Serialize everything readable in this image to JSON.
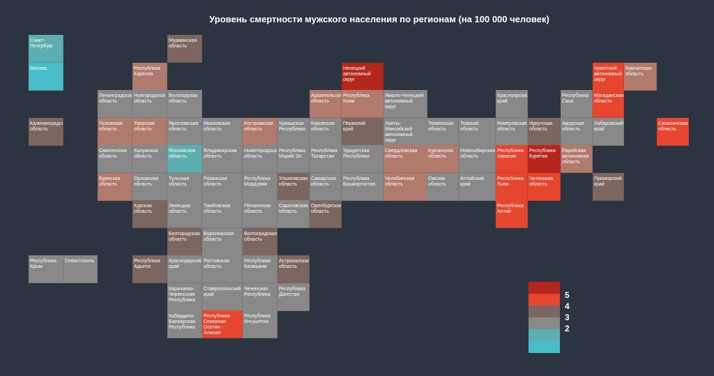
{
  "title": "Уровень смертности мужского населения по регионам (на 100 000 человек)",
  "palette": {
    "turquoise": "#47bdc7",
    "teal": "#5daeb0",
    "gray": "#888888",
    "brown": "#7d6560",
    "salmon": "#b07a6c",
    "orange": "#e6452e",
    "red": "#b5271d"
  },
  "regions": [
    {
      "name": "Санкт-Петербург",
      "col": 0,
      "row": 0,
      "color": "teal"
    },
    {
      "name": "Мурманская\nобласть",
      "col": 4,
      "row": 0,
      "color": "brown"
    },
    {
      "name": "Москва",
      "col": 0,
      "row": 1,
      "color": "turquoise"
    },
    {
      "name": "Республика\nКарелия",
      "col": 3,
      "row": 1,
      "color": "salmon"
    },
    {
      "name": "Ненецкий\nавтономный\nокруг",
      "col": 9,
      "row": 1,
      "color": "red"
    },
    {
      "name": "Чукотский\nавтономный\nокруг",
      "col": 16,
      "row": 1,
      "color": "orange"
    },
    {
      "name": "Камчатская\nобласть",
      "col": 17,
      "row": 1,
      "color": "salmon"
    },
    {
      "name": "Ленинградская\nобласть",
      "col": 2,
      "row": 2,
      "color": "gray"
    },
    {
      "name": "Новгородская\nобласть",
      "col": 3,
      "row": 2,
      "color": "gray"
    },
    {
      "name": "Вологодская\nобласть",
      "col": 4,
      "row": 2,
      "color": "gray"
    },
    {
      "name": "Архангельская\nобласть",
      "col": 8,
      "row": 2,
      "color": "salmon"
    },
    {
      "name": "Республика\nКоми",
      "col": 9,
      "row": 2,
      "color": "salmon"
    },
    {
      "name": "Ямало-Ненецкий\nавтономный округ",
      "col": 10,
      "row": 2,
      "color": "gray",
      "wide": true
    },
    {
      "name": "Красноярский\nкрай",
      "col": 13,
      "row": 2,
      "color": "gray"
    },
    {
      "name": "Республика\nСаха",
      "col": 15,
      "row": 2,
      "color": "gray"
    },
    {
      "name": "Магаданская\nобласть",
      "col": 16,
      "row": 2,
      "color": "orange"
    },
    {
      "name": "Калининградская\nобласть",
      "col": 0,
      "row": 3,
      "color": "brown"
    },
    {
      "name": "Псковская\nобласть",
      "col": 2,
      "row": 3,
      "color": "salmon"
    },
    {
      "name": "Тверская\nобласть",
      "col": 3,
      "row": 3,
      "color": "salmon"
    },
    {
      "name": "Ярославская\nобласть",
      "col": 4,
      "row": 3,
      "color": "gray"
    },
    {
      "name": "Ивановская\nобласть",
      "col": 5,
      "row": 3,
      "color": "gray"
    },
    {
      "name": "Костромская\nобласть",
      "col": 6,
      "row": 3,
      "color": "salmon"
    },
    {
      "name": "Чувашская\nРеспублика",
      "col": 7,
      "row": 3,
      "color": "gray"
    },
    {
      "name": "Кировская\nобласть",
      "col": 8,
      "row": 3,
      "color": "gray"
    },
    {
      "name": "Пермский\nкрай",
      "col": 9,
      "row": 3,
      "color": "brown"
    },
    {
      "name": "Ханты-Мансийский\nавтономный округ",
      "col": 10,
      "row": 3,
      "color": "gray",
      "wide": true
    },
    {
      "name": "Тюменская\nобласть",
      "col": 11,
      "row": 3,
      "color": "gray"
    },
    {
      "name": "Томская\nобласть",
      "col": 12,
      "row": 3,
      "color": "gray"
    },
    {
      "name": "Кемеровская\nобласть",
      "col": 13,
      "row": 3,
      "color": "gray"
    },
    {
      "name": "Иркутская\nобласть",
      "col": 14,
      "row": 3,
      "color": "brown"
    },
    {
      "name": "Амурская\nобласть",
      "col": 15,
      "row": 3,
      "color": "gray"
    },
    {
      "name": "Хабаровский\nкрай",
      "col": 16,
      "row": 3,
      "color": "gray"
    },
    {
      "name": "Сахалинская\nобласть",
      "col": 18,
      "row": 3,
      "color": "orange"
    },
    {
      "name": "Смоленская\nобласть",
      "col": 2,
      "row": 4,
      "color": "gray"
    },
    {
      "name": "Калужская\nобласть",
      "col": 3,
      "row": 4,
      "color": "gray"
    },
    {
      "name": "Московская\nобласть",
      "col": 4,
      "row": 4,
      "color": "teal"
    },
    {
      "name": "Владимирская\nобласть",
      "col": 5,
      "row": 4,
      "color": "gray"
    },
    {
      "name": "Нижегородская\nобласть",
      "col": 6,
      "row": 4,
      "color": "gray"
    },
    {
      "name": "Республика\nМарий Эл",
      "col": 7,
      "row": 4,
      "color": "gray"
    },
    {
      "name": "Республика\nТатарстан",
      "col": 8,
      "row": 4,
      "color": "gray"
    },
    {
      "name": "Удмуртская\nРеспублика",
      "col": 9,
      "row": 4,
      "color": "gray"
    },
    {
      "name": "Свердловская\nобласть",
      "col": 10,
      "row": 4,
      "color": "salmon",
      "wide": true
    },
    {
      "name": "Курганская\nобласть",
      "col": 11,
      "row": 4,
      "color": "salmon"
    },
    {
      "name": "Новосибирская\nобласть",
      "col": 12,
      "row": 4,
      "color": "gray"
    },
    {
      "name": "Республика\nХакасия",
      "col": 13,
      "row": 4,
      "color": "orange"
    },
    {
      "name": "Республика\nБурятия",
      "col": 14,
      "row": 4,
      "color": "red"
    },
    {
      "name": "Еврейская\nавтономная\nобласть",
      "col": 15,
      "row": 4,
      "color": "salmon"
    },
    {
      "name": "Брянская\nобласть",
      "col": 2,
      "row": 5,
      "color": "salmon"
    },
    {
      "name": "Орловская\nобласть",
      "col": 3,
      "row": 5,
      "color": "gray"
    },
    {
      "name": "Тульская\nобласть",
      "col": 4,
      "row": 5,
      "color": "gray"
    },
    {
      "name": "Рязанская\nобласть",
      "col": 5,
      "row": 5,
      "color": "gray"
    },
    {
      "name": "Республика\nМордовия",
      "col": 6,
      "row": 5,
      "color": "gray"
    },
    {
      "name": "Ульяновская\nобласть",
      "col": 7,
      "row": 5,
      "color": "brown"
    },
    {
      "name": "Самарская\nобласть",
      "col": 8,
      "row": 5,
      "color": "gray"
    },
    {
      "name": "Республика\nБашкортостан",
      "col": 9,
      "row": 5,
      "color": "gray"
    },
    {
      "name": "Челябинская\nобласть",
      "col": 10,
      "row": 5,
      "color": "salmon",
      "wide": true
    },
    {
      "name": "Омская\nобласть",
      "col": 11,
      "row": 5,
      "color": "gray"
    },
    {
      "name": "Алтайский\nкрай",
      "col": 12,
      "row": 5,
      "color": "gray"
    },
    {
      "name": "Республика\nТыва",
      "col": 13,
      "row": 5,
      "color": "orange"
    },
    {
      "name": "Читинская\nобласть",
      "col": 14,
      "row": 5,
      "color": "orange"
    },
    {
      "name": "Приморский\nкрай",
      "col": 16,
      "row": 5,
      "color": "brown"
    },
    {
      "name": "Курская\nобласть",
      "col": 3,
      "row": 6,
      "color": "brown"
    },
    {
      "name": "Липецкая\nобласть",
      "col": 4,
      "row": 6,
      "color": "gray"
    },
    {
      "name": "Тамбовская\nобласть",
      "col": 5,
      "row": 6,
      "color": "gray"
    },
    {
      "name": "Пензенская\nобласть",
      "col": 6,
      "row": 6,
      "color": "gray"
    },
    {
      "name": "Саратовская\nобласть",
      "col": 7,
      "row": 6,
      "color": "gray"
    },
    {
      "name": "Оренбургская\nобласть",
      "col": 8,
      "row": 6,
      "color": "brown"
    },
    {
      "name": "Республика\nАлтай",
      "col": 13,
      "row": 6,
      "color": "orange"
    },
    {
      "name": "Белгородская\nобласть",
      "col": 4,
      "row": 7,
      "color": "brown"
    },
    {
      "name": "Воронежская\nобласть",
      "col": 5,
      "row": 7,
      "color": "gray"
    },
    {
      "name": "Волгоградская\nобласть",
      "col": 6,
      "row": 7,
      "color": "brown"
    },
    {
      "name": "Республика\nКрым",
      "col": 0,
      "row": 8,
      "color": "gray"
    },
    {
      "name": "Севастополь",
      "col": 1,
      "row": 8,
      "color": "gray"
    },
    {
      "name": "Республика\nАдыгея",
      "col": 3,
      "row": 8,
      "color": "brown"
    },
    {
      "name": "Краснодарский\nкрай",
      "col": 4,
      "row": 8,
      "color": "gray"
    },
    {
      "name": "Ростовская\nобласть",
      "col": 5,
      "row": 8,
      "color": "gray"
    },
    {
      "name": "Республика\nКалмыкия",
      "col": 6,
      "row": 8,
      "color": "gray"
    },
    {
      "name": "Астраханская\nобласть",
      "col": 7,
      "row": 8,
      "color": "brown"
    },
    {
      "name": "Карачаево-\nЧеркесская\nРеспублика",
      "col": 4,
      "row": 9,
      "color": "gray"
    },
    {
      "name": "Ставропольский\nкрай",
      "col": 5,
      "row": 9,
      "color": "gray"
    },
    {
      "name": "Чеченская\nРеспублика",
      "col": 6,
      "row": 9,
      "color": "gray"
    },
    {
      "name": "Республика\nДагестан",
      "col": 7,
      "row": 9,
      "color": "gray"
    },
    {
      "name": "Кабардино-\nБалкарская\nРеспублика",
      "col": 4,
      "row": 10,
      "color": "gray"
    },
    {
      "name": "Республика\nСеверная Осетия -\nАлания",
      "col": 5,
      "row": 10,
      "color": "orange"
    },
    {
      "name": "Республика\nИнгушетия",
      "col": 6,
      "row": 10,
      "color": "gray"
    }
  ],
  "legend": {
    "items": [
      {
        "color": "#b5271d",
        "label": "5"
      },
      {
        "color": "#e6452e",
        "label": "4"
      },
      {
        "color": "#7d6560",
        "label": "3"
      },
      {
        "color": "#888888",
        "label": "2"
      },
      {
        "color": "#5daeb0",
        "label": ""
      },
      {
        "color": "#47bdc7",
        "label": ""
      }
    ]
  }
}
